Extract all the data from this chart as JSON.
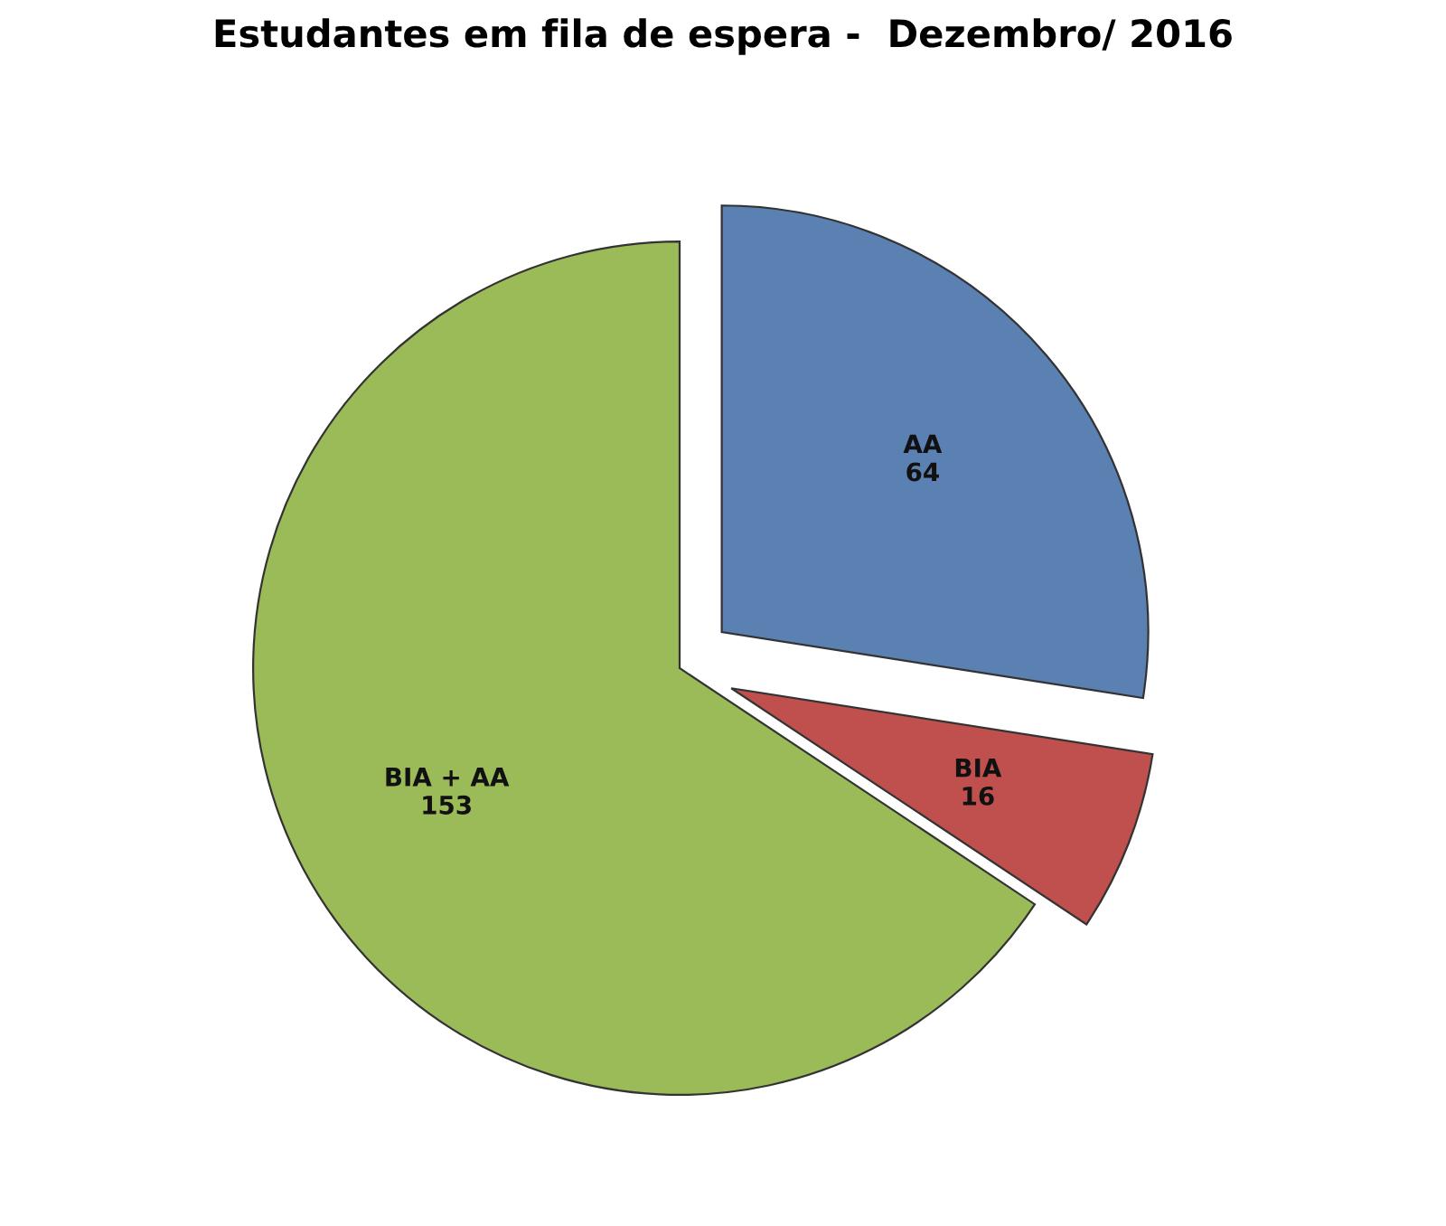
{
  "chart_data": {
    "type": "pie",
    "title": "Estudantes em fila de espera -  Dezembro/ 2016",
    "categories": [
      "AA",
      "BIA",
      "BIA + AA"
    ],
    "values": [
      64,
      16,
      153
    ],
    "colors": [
      "#5b80b2",
      "#c0504d",
      "#9bbb59"
    ],
    "data_labels": true,
    "legend": false
  }
}
